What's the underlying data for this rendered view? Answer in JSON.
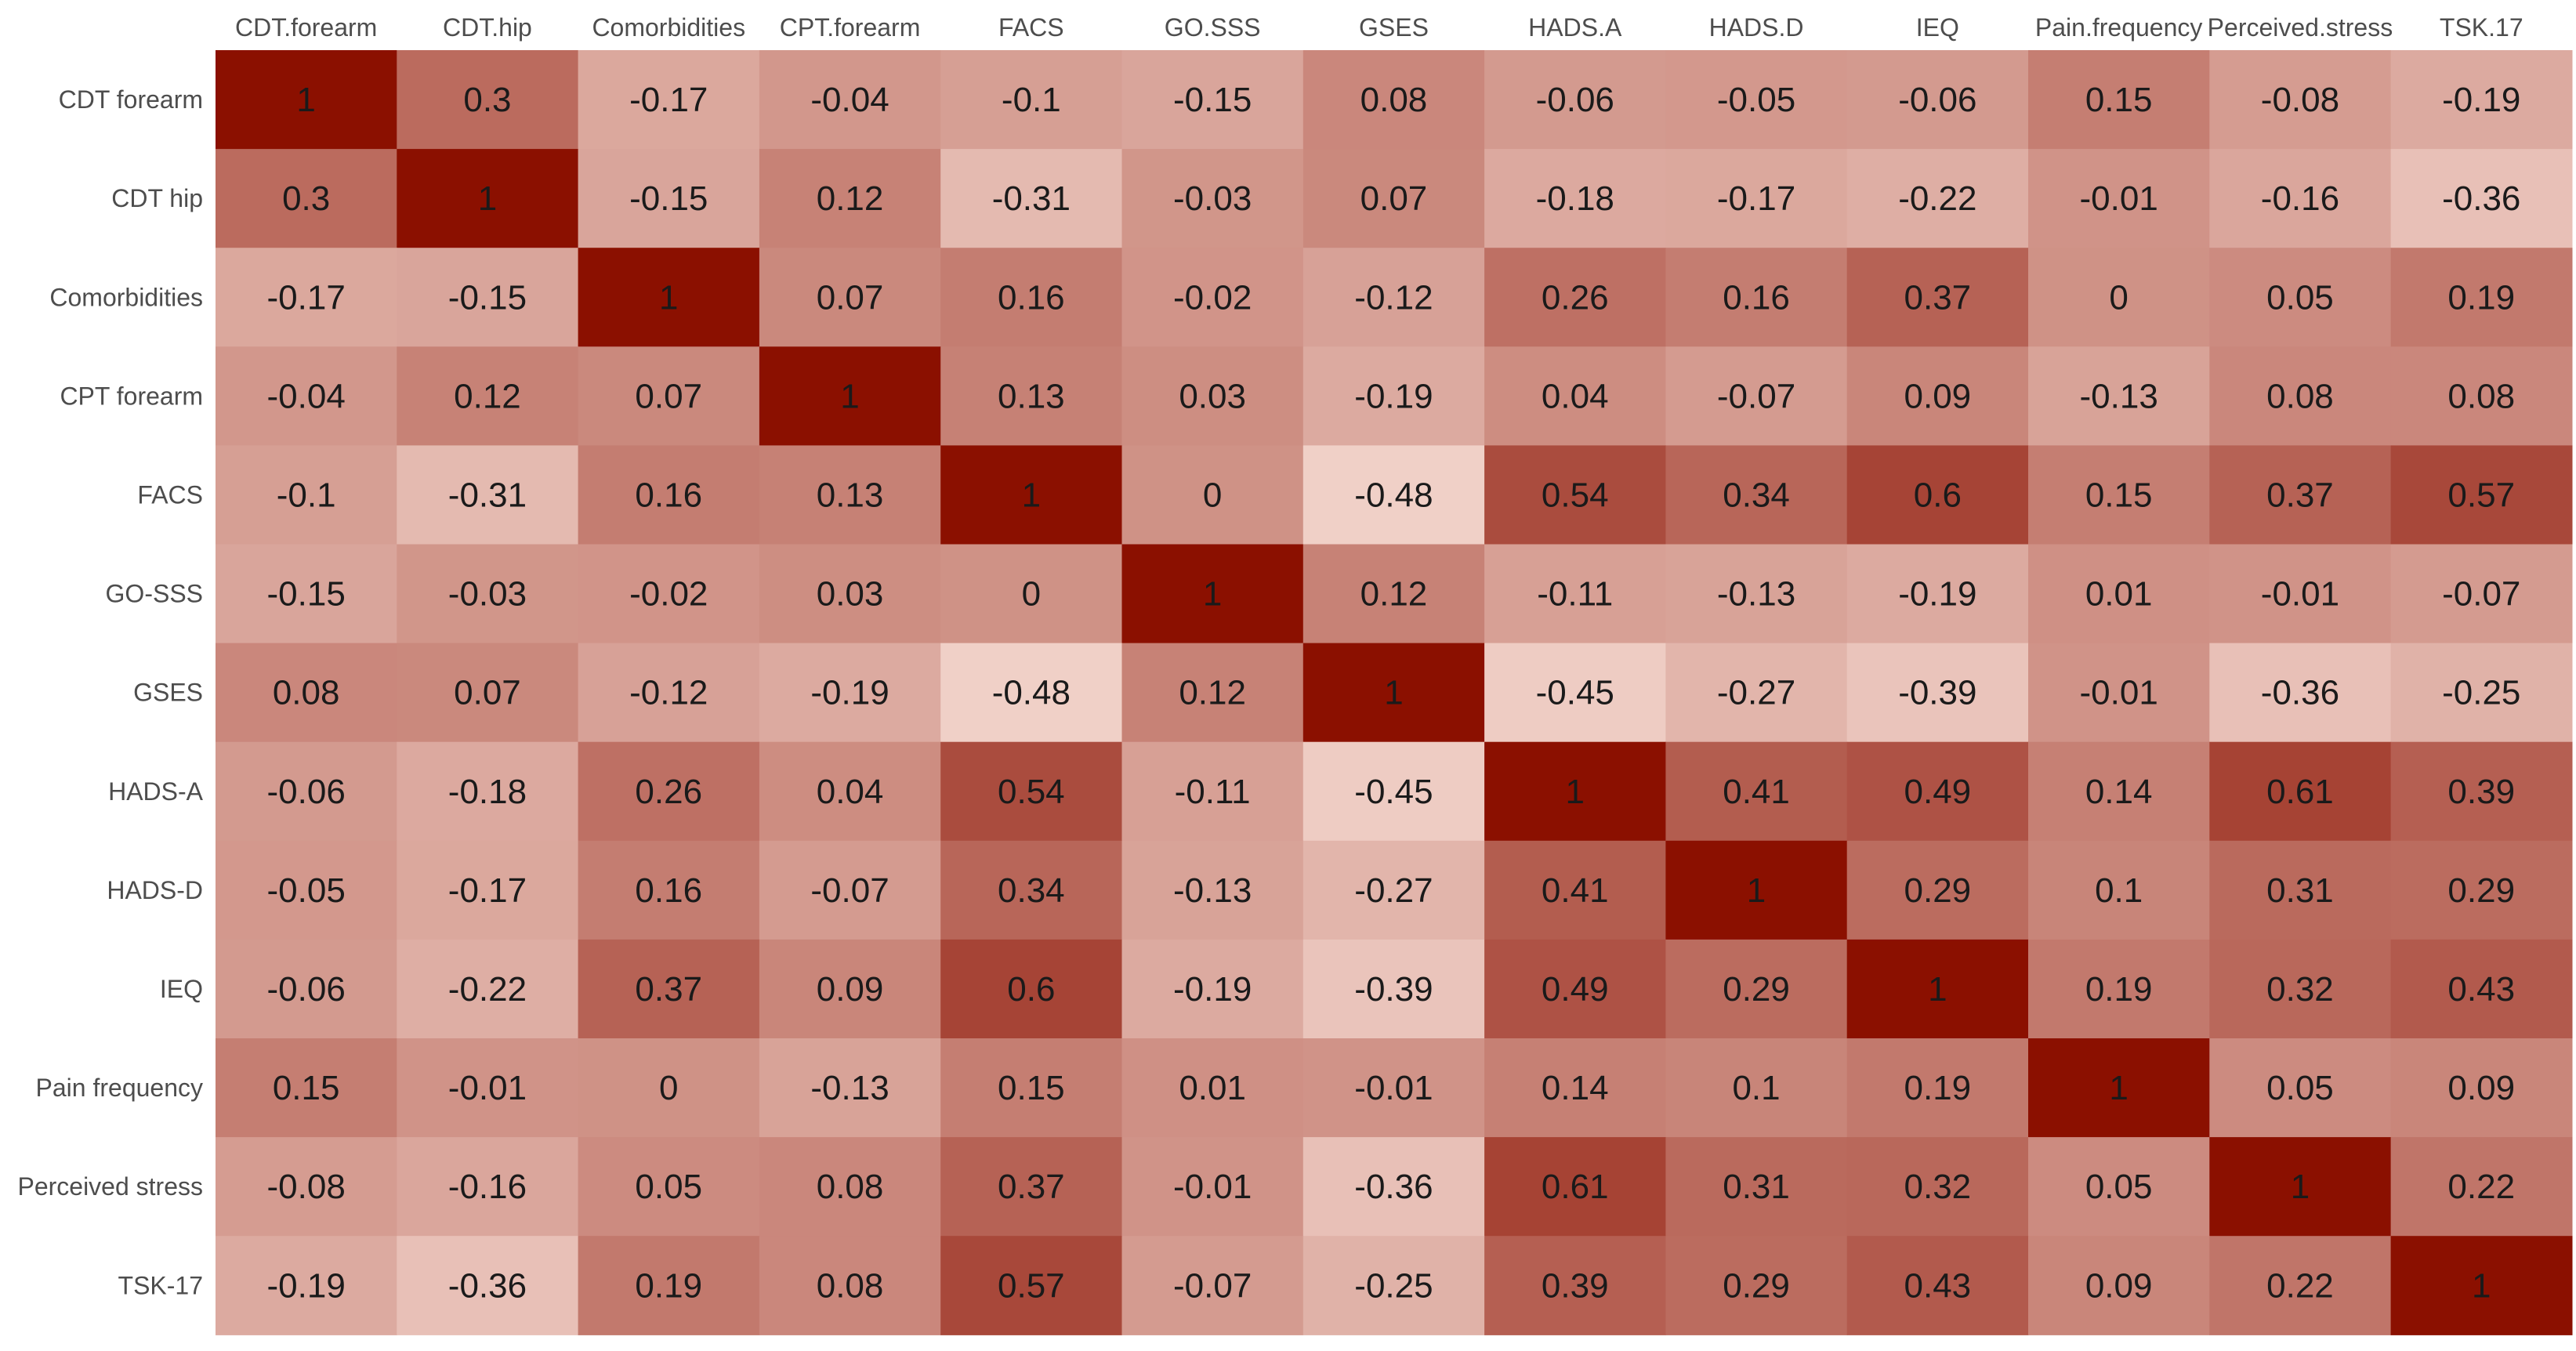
{
  "chart_data": {
    "type": "heatmap",
    "title": "",
    "xlabel": "",
    "ylabel": "",
    "x_categories": [
      "CDT.forearm",
      "CDT.hip",
      "Comorbidities",
      "CPT.forearm",
      "FACS",
      "GO.SSS",
      "GSES",
      "HADS.A",
      "HADS.D",
      "IEQ",
      "Pain.frequency",
      "Perceived.stress",
      "TSK.17"
    ],
    "y_categories": [
      "CDT forearm",
      "CDT hip",
      "Comorbidities",
      "CPT forearm",
      "FACS",
      "GO-SSS",
      "GSES",
      "HADS-A",
      "HADS-D",
      "IEQ",
      "Pain frequency",
      "Perceived stress",
      "TSK-17"
    ],
    "values": [
      [
        1,
        0.3,
        -0.17,
        -0.04,
        -0.1,
        -0.15,
        0.08,
        -0.06,
        -0.05,
        -0.06,
        0.15,
        -0.08,
        -0.19
      ],
      [
        0.3,
        1,
        -0.15,
        0.12,
        -0.31,
        -0.03,
        0.07,
        -0.18,
        -0.17,
        -0.22,
        -0.01,
        -0.16,
        -0.36
      ],
      [
        -0.17,
        -0.15,
        1,
        0.07,
        0.16,
        -0.02,
        -0.12,
        0.26,
        0.16,
        0.37,
        0,
        0.05,
        0.19
      ],
      [
        -0.04,
        0.12,
        0.07,
        1,
        0.13,
        0.03,
        -0.19,
        0.04,
        -0.07,
        0.09,
        -0.13,
        0.08,
        0.08
      ],
      [
        -0.1,
        -0.31,
        0.16,
        0.13,
        1,
        0,
        -0.48,
        0.54,
        0.34,
        0.6,
        0.15,
        0.37,
        0.57
      ],
      [
        -0.15,
        -0.03,
        -0.02,
        0.03,
        0,
        1,
        0.12,
        -0.11,
        -0.13,
        -0.19,
        0.01,
        -0.01,
        -0.07
      ],
      [
        0.08,
        0.07,
        -0.12,
        -0.19,
        -0.48,
        0.12,
        1,
        -0.45,
        -0.27,
        -0.39,
        -0.01,
        -0.36,
        -0.25
      ],
      [
        -0.06,
        -0.18,
        0.26,
        0.04,
        0.54,
        -0.11,
        -0.45,
        1,
        0.41,
        0.49,
        0.14,
        0.61,
        0.39
      ],
      [
        -0.05,
        -0.17,
        0.16,
        -0.07,
        0.34,
        -0.13,
        -0.27,
        0.41,
        1,
        0.29,
        0.1,
        0.31,
        0.29
      ],
      [
        -0.06,
        -0.22,
        0.37,
        0.09,
        0.6,
        -0.19,
        -0.39,
        0.49,
        0.29,
        1,
        0.19,
        0.32,
        0.43
      ],
      [
        0.15,
        -0.01,
        0,
        -0.13,
        0.15,
        0.01,
        -0.01,
        0.14,
        0.1,
        0.19,
        1,
        0.05,
        0.09
      ],
      [
        -0.08,
        -0.16,
        0.05,
        0.08,
        0.37,
        -0.01,
        -0.36,
        0.61,
        0.31,
        0.32,
        0.05,
        1,
        0.22
      ],
      [
        -0.19,
        -0.36,
        0.19,
        0.08,
        0.57,
        -0.07,
        -0.25,
        0.39,
        0.29,
        0.43,
        0.09,
        0.22,
        1
      ]
    ],
    "color_scale": {
      "low": "#f0d0c7",
      "high": "#8b1000",
      "min": -0.48,
      "max": 1
    },
    "legend": "none",
    "grid": false
  }
}
